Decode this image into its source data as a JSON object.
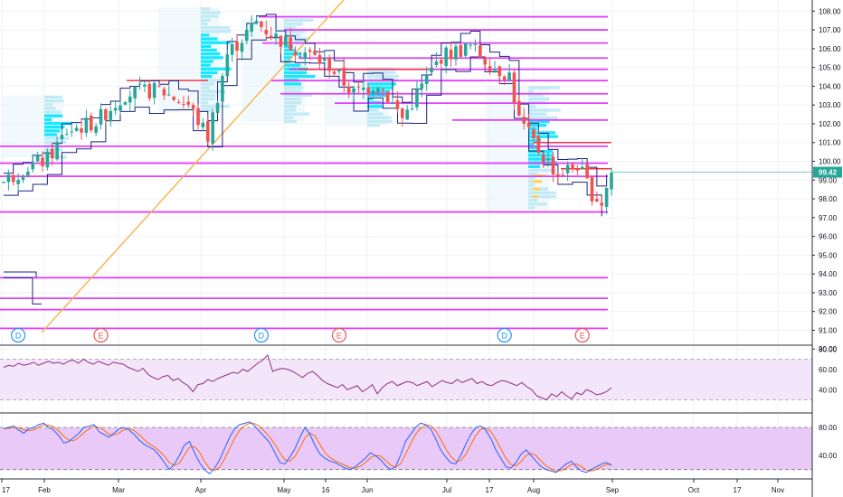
{
  "chart_data": {
    "type": "candlestick",
    "price_axis": {
      "ylim": [
        90.3,
        108.4
      ],
      "ticks": [
        "108.00",
        "107.00",
        "106.00",
        "105.00",
        "104.00",
        "103.00",
        "102.00",
        "101.00",
        "100.00",
        "99.00",
        "98.00",
        "97.00",
        "96.00",
        "95.00",
        "94.00",
        "93.00",
        "92.00",
        "91.00",
        "90.00"
      ],
      "last_price": "99.42"
    },
    "time_axis": {
      "labels": [
        "17",
        "Feb",
        "Mar",
        "Apr",
        "May",
        "16",
        "Jun",
        "Jul",
        "17",
        "Aug",
        "Sep",
        "Oct",
        "17",
        "Nov"
      ]
    },
    "events": [
      {
        "letter": "D",
        "time_index": 3
      },
      {
        "letter": "E",
        "time_index": 20
      },
      {
        "letter": "D",
        "time_index": 53
      },
      {
        "letter": "E",
        "time_index": 69
      },
      {
        "letter": "D",
        "time_index": 103
      },
      {
        "letter": "E",
        "time_index": 119
      }
    ],
    "horizontal_levels": [
      107.7,
      107.0,
      106.3,
      105.5,
      104.9,
      104.3,
      103.6,
      103.1,
      102.2,
      100.8,
      99.9,
      99.2,
      97.3,
      93.8,
      92.7,
      92.1,
      91.1
    ],
    "red_levels": [
      101.0,
      99.6,
      104.9,
      104.3
    ],
    "rsi": {
      "ticks": [
        "80.00",
        "60.00",
        "40.00"
      ],
      "upper": 70,
      "lower": 30,
      "values": [
        62,
        64,
        63,
        66,
        64,
        65,
        67,
        64,
        66,
        68,
        66,
        67,
        65,
        68,
        69,
        66,
        70,
        67,
        65,
        68,
        66,
        64,
        67,
        66,
        65,
        62,
        60,
        58,
        61,
        55,
        52,
        50,
        53,
        54,
        49,
        51,
        47,
        44,
        38,
        45,
        46,
        50,
        48,
        51,
        53,
        55,
        57,
        56,
        60,
        58,
        62,
        66,
        69,
        74,
        58,
        60,
        61,
        60,
        58,
        55,
        52,
        56,
        58,
        54,
        49,
        46,
        44,
        42,
        45,
        40,
        42,
        44,
        38,
        41,
        45,
        36,
        42,
        46,
        48,
        44,
        46,
        48,
        47,
        44,
        46,
        48,
        43,
        46,
        49,
        47,
        46,
        50,
        47,
        49,
        51,
        46,
        48,
        45,
        44,
        47,
        49,
        48,
        46,
        44,
        47,
        43,
        40,
        34,
        32,
        30,
        36,
        33,
        38,
        34,
        31,
        37,
        35,
        40,
        38,
        35,
        36,
        38,
        42
      ]
    },
    "stoch": {
      "ticks": [
        "80.00",
        "40.00"
      ],
      "upper": 80,
      "lower": 20,
      "k": [
        78,
        80,
        82,
        76,
        72,
        78,
        80,
        84,
        86,
        80,
        76,
        68,
        58,
        60,
        66,
        72,
        80,
        82,
        84,
        74,
        70,
        66,
        72,
        78,
        80,
        76,
        70,
        62,
        56,
        52,
        48,
        40,
        30,
        20,
        28,
        40,
        55,
        60,
        44,
        30,
        20,
        14,
        22,
        34,
        50,
        66,
        78,
        84,
        86,
        88,
        82,
        74,
        66,
        58,
        44,
        30,
        28,
        38,
        50,
        66,
        80,
        70,
        54,
        42,
        36,
        32,
        30,
        26,
        22,
        20,
        24,
        30,
        36,
        44,
        40,
        34,
        26,
        20,
        24,
        40,
        60,
        70,
        80,
        86,
        84,
        78,
        64,
        48,
        38,
        30,
        28,
        40,
        56,
        70,
        80,
        82,
        76,
        64,
        48,
        36,
        24,
        22,
        30,
        42,
        48,
        40,
        32,
        24,
        20,
        18,
        16,
        22,
        28,
        32,
        24,
        18,
        16,
        20,
        24,
        28,
        30,
        26
      ]
    },
    "series_colors": {
      "up": "#26a69a",
      "down": "#ef5350",
      "levels": "#e040fb",
      "red_level": "#f23645",
      "profile_hi": "#00e5ff",
      "profile_lo": "#ffd54f",
      "trend": "#f7b24a",
      "rsi": "#8e2f7f",
      "stoch_k": "#2962ff",
      "stoch_d": "#ff6d00"
    }
  }
}
